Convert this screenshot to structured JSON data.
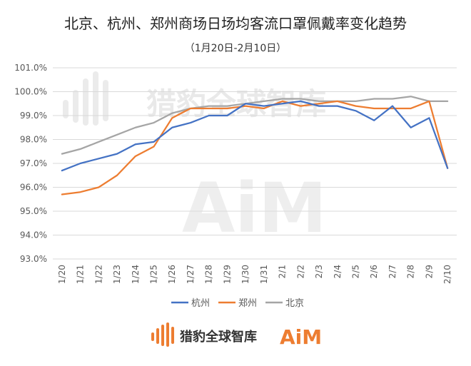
{
  "chart_data": {
    "type": "line",
    "title": "北京、杭州、郑州商场日场均客流口罩佩戴率变化趋势",
    "subtitle": "（1月20日-2月10日）",
    "categories": [
      "1/20",
      "1/21",
      "1/22",
      "1/23",
      "1/24",
      "1/25",
      "1/26",
      "1/27",
      "1/28",
      "1/29",
      "1/30",
      "1/31",
      "2/1",
      "2/2",
      "2/3",
      "2/4",
      "2/5",
      "2/6",
      "2/7",
      "2/8",
      "2/9",
      "2/10"
    ],
    "yticks": [
      "93.0%",
      "94.0%",
      "95.0%",
      "96.0%",
      "97.0%",
      "98.0%",
      "99.0%",
      "100.0%",
      "101.0%"
    ],
    "ylim": [
      93,
      101
    ],
    "grid": true,
    "legend_position": "bottom",
    "series": [
      {
        "name": "杭州",
        "color": "#4472c4",
        "values": [
          96.7,
          97.0,
          97.2,
          97.4,
          97.8,
          97.9,
          98.5,
          98.7,
          99.0,
          99.0,
          99.5,
          99.4,
          99.5,
          99.6,
          99.4,
          99.4,
          99.2,
          98.8,
          99.4,
          98.5,
          98.9,
          96.8
        ]
      },
      {
        "name": "郑州",
        "color": "#ed7d31",
        "values": [
          95.7,
          95.8,
          96.0,
          96.5,
          97.3,
          97.7,
          98.9,
          99.3,
          99.3,
          99.3,
          99.4,
          99.3,
          99.6,
          99.4,
          99.5,
          99.6,
          99.4,
          99.3,
          99.3,
          99.3,
          99.6,
          96.8
        ]
      },
      {
        "name": "北京",
        "color": "#a5a5a5",
        "values": [
          97.4,
          97.6,
          97.9,
          98.2,
          98.5,
          98.7,
          99.1,
          99.3,
          99.4,
          99.4,
          99.5,
          99.6,
          99.7,
          99.7,
          99.6,
          99.6,
          99.6,
          99.7,
          99.7,
          99.8,
          99.6,
          99.6
        ]
      }
    ]
  },
  "footer": {
    "brand_name": "猎豹全球智库",
    "brand_logo": "AiM",
    "brand_color": "#ed7d31"
  },
  "watermark": {
    "text": "猎豹全球智库",
    "logo": "AiM"
  }
}
